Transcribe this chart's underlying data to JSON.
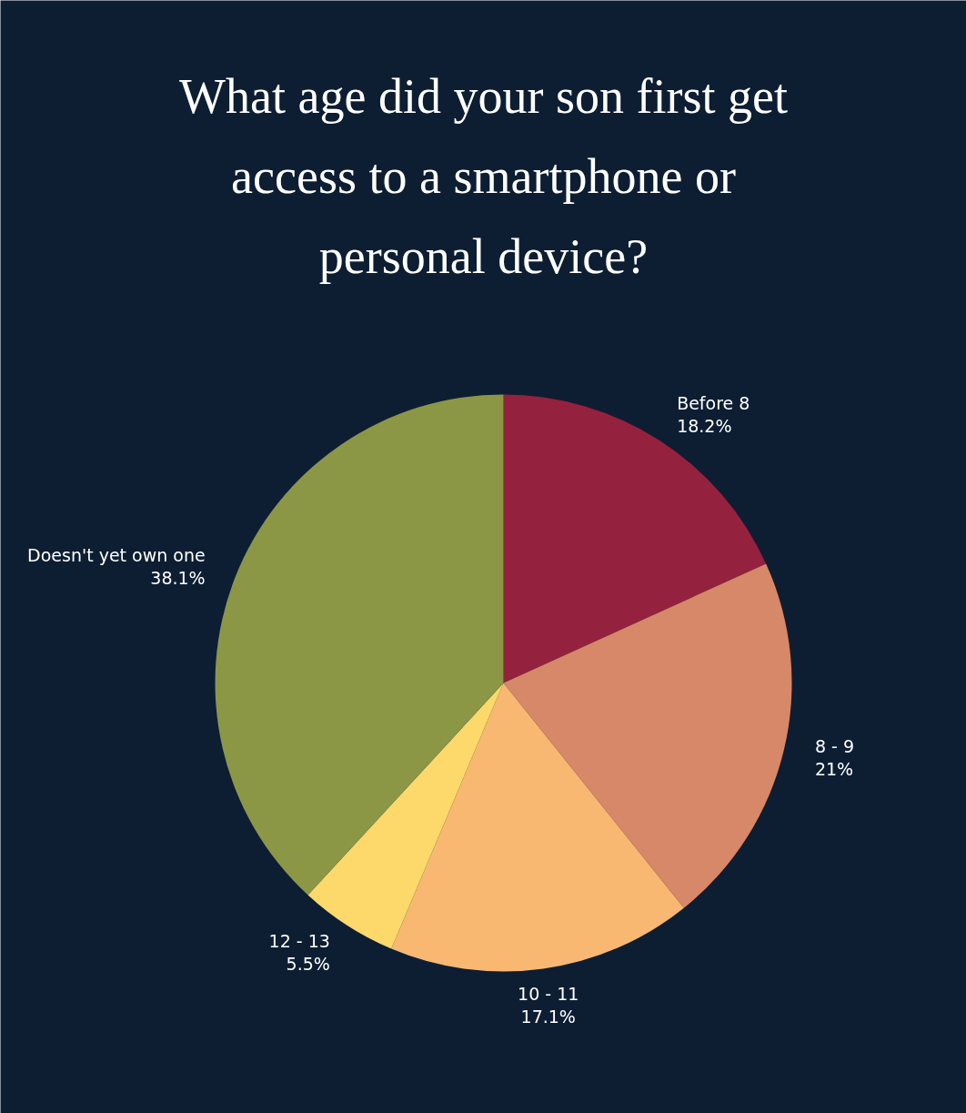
{
  "chart_data": {
    "type": "pie",
    "title": "What age did your son first get access to a smartphone or personal device?",
    "categories": [
      "Before 8",
      "8 - 9",
      "10 - 11",
      "12 - 13",
      "Doesn't yet own one"
    ],
    "values": [
      18.2,
      21,
      17.1,
      5.5,
      38.1
    ],
    "value_labels": [
      "18.2%",
      "21%",
      "17.1%",
      "5.5%",
      "38.1%"
    ],
    "colors": [
      "#94223e",
      "#d68868",
      "#f9b872",
      "#fdd86a",
      "#8b9745"
    ]
  }
}
